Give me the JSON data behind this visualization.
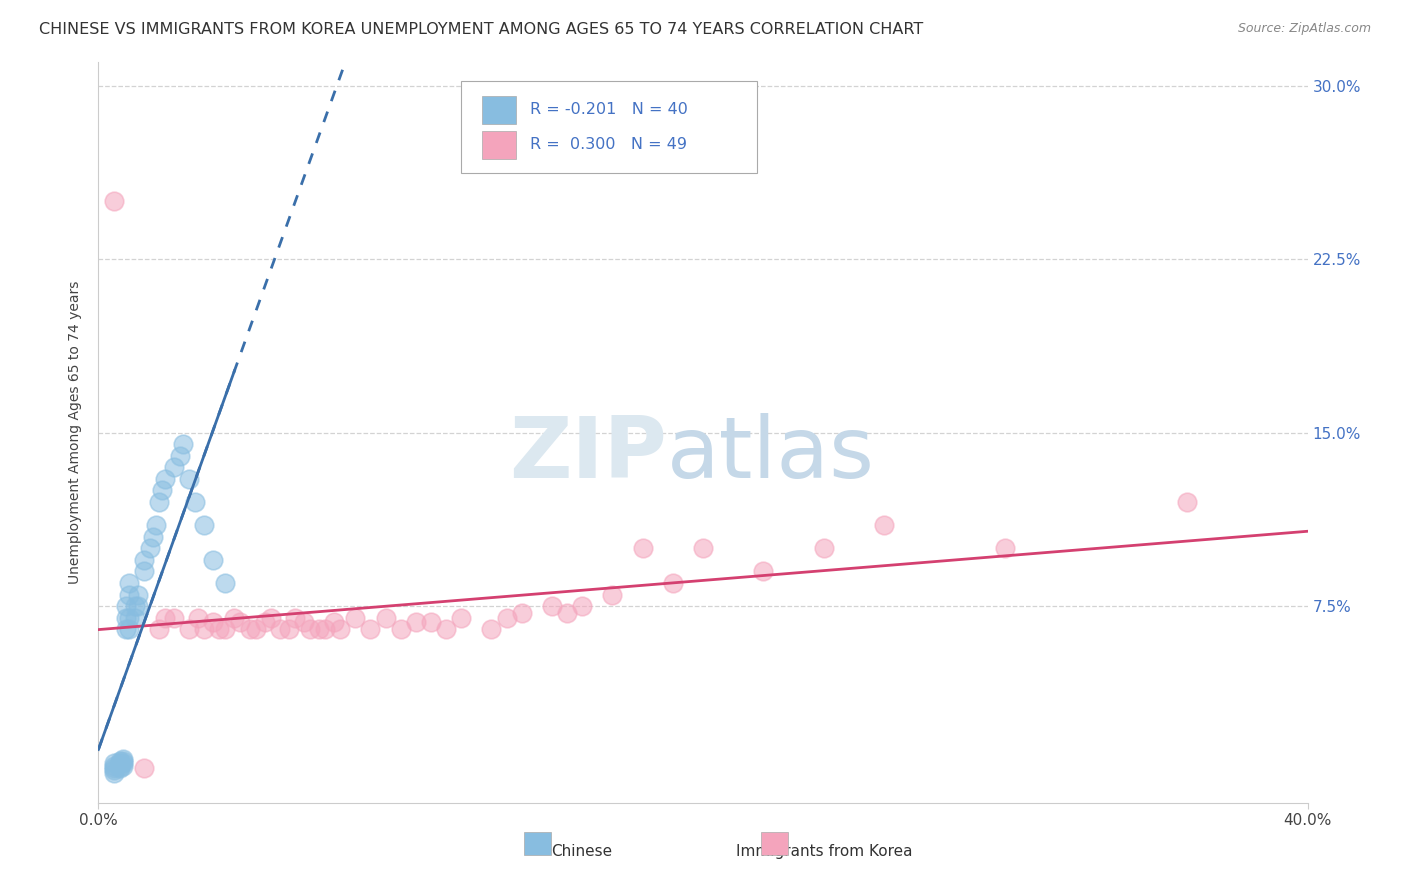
{
  "title": "CHINESE VS IMMIGRANTS FROM KOREA UNEMPLOYMENT AMONG AGES 65 TO 74 YEARS CORRELATION CHART",
  "source": "Source: ZipAtlas.com",
  "ylabel": "Unemployment Among Ages 65 to 74 years",
  "xlabel_chinese": "Chinese",
  "xlabel_korea": "Immigrants from Korea",
  "xlim": [
    0.0,
    0.4
  ],
  "ylim": [
    -0.01,
    0.31
  ],
  "yticks": [
    0.0,
    0.075,
    0.15,
    0.225,
    0.3
  ],
  "ytick_labels": [
    "",
    "7.5%",
    "15.0%",
    "22.5%",
    "30.0%"
  ],
  "xticks": [
    0.0,
    0.4
  ],
  "xtick_labels": [
    "0.0%",
    "40.0%"
  ],
  "chinese_color": "#88bde0",
  "korea_color": "#f4a4bc",
  "chinese_line_color": "#3a6faa",
  "korea_line_color": "#d44070",
  "background_color": "#ffffff",
  "grid_color": "#c8c8c8",
  "title_fontsize": 11.5,
  "axis_label_fontsize": 10,
  "tick_fontsize": 11,
  "chinese_scatter_x": [
    0.005,
    0.005,
    0.005,
    0.005,
    0.005,
    0.007,
    0.007,
    0.007,
    0.007,
    0.008,
    0.008,
    0.008,
    0.008,
    0.009,
    0.009,
    0.009,
    0.01,
    0.01,
    0.01,
    0.01,
    0.012,
    0.012,
    0.013,
    0.013,
    0.015,
    0.015,
    0.017,
    0.018,
    0.019,
    0.02,
    0.021,
    0.022,
    0.025,
    0.027,
    0.028,
    0.03,
    0.032,
    0.035,
    0.038,
    0.042
  ],
  "chinese_scatter_y": [
    0.003,
    0.004,
    0.005,
    0.006,
    0.007,
    0.005,
    0.006,
    0.007,
    0.008,
    0.006,
    0.007,
    0.008,
    0.009,
    0.065,
    0.07,
    0.075,
    0.065,
    0.07,
    0.08,
    0.085,
    0.07,
    0.075,
    0.075,
    0.08,
    0.09,
    0.095,
    0.1,
    0.105,
    0.11,
    0.12,
    0.125,
    0.13,
    0.135,
    0.14,
    0.145,
    0.13,
    0.12,
    0.11,
    0.095,
    0.085
  ],
  "korea_scatter_x": [
    0.005,
    0.015,
    0.02,
    0.022,
    0.025,
    0.03,
    0.033,
    0.035,
    0.038,
    0.04,
    0.042,
    0.045,
    0.047,
    0.05,
    0.052,
    0.055,
    0.057,
    0.06,
    0.063,
    0.065,
    0.068,
    0.07,
    0.073,
    0.075,
    0.078,
    0.08,
    0.085,
    0.09,
    0.095,
    0.1,
    0.105,
    0.11,
    0.115,
    0.12,
    0.13,
    0.135,
    0.14,
    0.15,
    0.155,
    0.16,
    0.17,
    0.18,
    0.19,
    0.2,
    0.22,
    0.24,
    0.26,
    0.3,
    0.36
  ],
  "korea_scatter_y": [
    0.25,
    0.005,
    0.065,
    0.07,
    0.07,
    0.065,
    0.07,
    0.065,
    0.068,
    0.065,
    0.065,
    0.07,
    0.068,
    0.065,
    0.065,
    0.068,
    0.07,
    0.065,
    0.065,
    0.07,
    0.068,
    0.065,
    0.065,
    0.065,
    0.068,
    0.065,
    0.07,
    0.065,
    0.07,
    0.065,
    0.068,
    0.068,
    0.065,
    0.07,
    0.065,
    0.07,
    0.072,
    0.075,
    0.072,
    0.075,
    0.08,
    0.1,
    0.085,
    0.1,
    0.09,
    0.1,
    0.11,
    0.1,
    0.12
  ]
}
